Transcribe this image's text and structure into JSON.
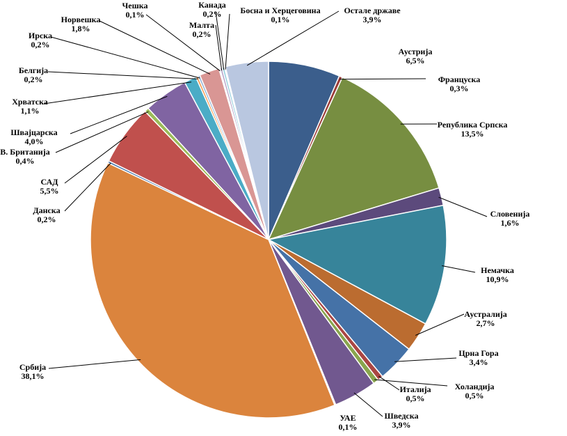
{
  "chart_data": {
    "type": "pie",
    "start_angle_deg": 0,
    "direction": "clockwise",
    "slices": [
      {
        "label": "Аустрија",
        "value": 6.5,
        "value_label": "6,5%",
        "color": "#3b5e8c"
      },
      {
        "label": "Француска",
        "value": 0.3,
        "value_label": "0,3%",
        "color": "#9b3c38"
      },
      {
        "label": "Република Српска",
        "value": 13.5,
        "value_label": "13,5%",
        "color": "#778e41"
      },
      {
        "label": "Словенија",
        "value": 1.6,
        "value_label": "1,6%",
        "color": "#5c4a7c"
      },
      {
        "label": "Немачка",
        "value": 10.9,
        "value_label": "10,9%",
        "color": "#37849a"
      },
      {
        "label": "Аустралија",
        "value": 2.7,
        "value_label": "2,7%",
        "color": "#bb6c30"
      },
      {
        "label": "Црна Гора",
        "value": 3.4,
        "value_label": "3,4%",
        "color": "#4572a7"
      },
      {
        "label": "Италија",
        "value": 0.5,
        "value_label": "0,5%",
        "color": "#aa4643"
      },
      {
        "label": "Холандија",
        "value": 0.5,
        "value_label": "0,5%",
        "color": "#89a54e"
      },
      {
        "label": "Шведска",
        "value": 3.9,
        "value_label": "3,9%",
        "color": "#71588f"
      },
      {
        "label": "УАЕ",
        "value": 0.1,
        "value_label": "0,1%",
        "color": "#4198af"
      },
      {
        "label": "Србија",
        "value": 38.1,
        "value_label": "38,1%",
        "color": "#db843d"
      },
      {
        "label": "Данска",
        "value": 0.2,
        "value_label": "0,2%",
        "color": "#4572a7"
      },
      {
        "label": "САД",
        "value": 5.5,
        "value_label": "5,5%",
        "color": "#c0504d"
      },
      {
        "label": "В. Британија",
        "value": 0.4,
        "value_label": "0,4%",
        "color": "#9bbb59"
      },
      {
        "label": "Швајцарска",
        "value": 4.0,
        "value_label": "4,0%",
        "color": "#8064a2"
      },
      {
        "label": "Хрватска",
        "value": 1.1,
        "value_label": "1,1%",
        "color": "#4bacc6"
      },
      {
        "label": "Белгија",
        "value": 0.2,
        "value_label": "0,2%",
        "color": "#f79646"
      },
      {
        "label": "Ирска",
        "value": 0.2,
        "value_label": "0,2%",
        "color": "#95b3d7"
      },
      {
        "label": "Норвешка",
        "value": 1.8,
        "value_label": "1,8%",
        "color": "#d99694"
      },
      {
        "label": "Чешка",
        "value": 0.1,
        "value_label": "0,1%",
        "color": "#c3d69b"
      },
      {
        "label": "Малта",
        "value": 0.2,
        "value_label": "0,2%",
        "color": "#b3a2c7"
      },
      {
        "label": "Канада",
        "value": 0.2,
        "value_label": "0,2%",
        "color": "#93cddd"
      },
      {
        "label": "Босна и Херцеговина",
        "value": 0.1,
        "value_label": "0,1%",
        "color": "#fac090"
      },
      {
        "label": "Остале државе",
        "value": 3.9,
        "value_label": "3,9%",
        "color": "#b9c7e0"
      }
    ]
  }
}
